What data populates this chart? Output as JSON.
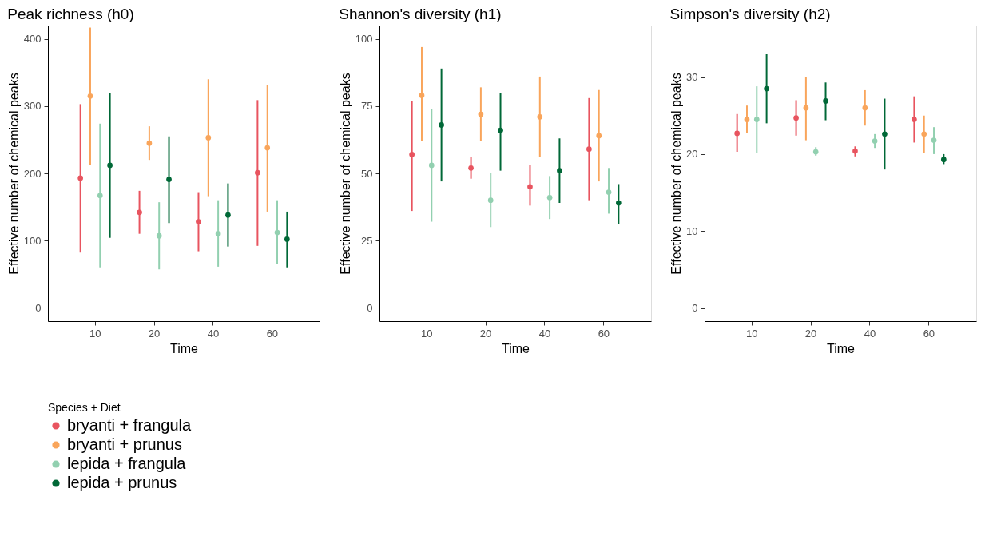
{
  "chart_data": [
    {
      "type": "scatter",
      "title": "Peak richness (h0)",
      "xlabel": "Time",
      "ylabel": "Effective number of chemical peaks",
      "categories": [
        "10",
        "20",
        "40",
        "60"
      ],
      "ylim": [
        -20,
        420
      ],
      "yticks": [
        0,
        100,
        200,
        300,
        400
      ],
      "grid": false,
      "marker": "circle",
      "legend": "bottom",
      "legend_title": "Species + Diet",
      "series": [
        {
          "name": "bryanti + frangula",
          "color": "#e8545f",
          "values": [
            193,
            142,
            128,
            201
          ],
          "errors": [
            [
              82,
              303
            ],
            [
              110,
              174
            ],
            [
              84,
              172
            ],
            [
              92,
              309
            ]
          ]
        },
        {
          "name": "bryanti + prunus",
          "color": "#f9a55b",
          "values": [
            315,
            245,
            253,
            238
          ],
          "errors": [
            [
              213,
              417
            ],
            [
              220,
              270
            ],
            [
              166,
              340
            ],
            [
              143,
              331
            ]
          ]
        },
        {
          "name": "lepida + frangula",
          "color": "#92d0b0",
          "values": [
            167,
            107,
            110,
            112
          ],
          "errors": [
            [
              60,
              274
            ],
            [
              57,
              157
            ],
            [
              61,
              160
            ],
            [
              65,
              160
            ]
          ]
        },
        {
          "name": "lepida + prunus",
          "color": "#006837",
          "values": [
            212,
            191,
            138,
            102
          ],
          "errors": [
            [
              104,
              319
            ],
            [
              126,
              255
            ],
            [
              91,
              185
            ],
            [
              60,
              143
            ]
          ]
        }
      ]
    },
    {
      "type": "scatter",
      "title": "Shannon's diversity (h1)",
      "xlabel": "Time",
      "ylabel": "Effective number of chemical peaks",
      "categories": [
        "10",
        "20",
        "40",
        "60"
      ],
      "ylim": [
        -5,
        105
      ],
      "yticks": [
        0,
        25,
        50,
        75,
        100
      ],
      "grid": false,
      "marker": "circle",
      "series": [
        {
          "color": "#e8545f",
          "values": [
            57,
            52,
            45,
            59
          ],
          "errors": [
            [
              36,
              77
            ],
            [
              48,
              56
            ],
            [
              38,
              53
            ],
            [
              40,
              78
            ]
          ]
        },
        {
          "color": "#f9a55b",
          "values": [
            79,
            72,
            71,
            64
          ],
          "errors": [
            [
              62,
              97
            ],
            [
              62,
              82
            ],
            [
              56,
              86
            ],
            [
              47,
              81
            ]
          ]
        },
        {
          "color": "#92d0b0",
          "values": [
            53,
            40,
            41,
            43
          ],
          "errors": [
            [
              32,
              74
            ],
            [
              30,
              50
            ],
            [
              33,
              49
            ],
            [
              35,
              52
            ]
          ]
        },
        {
          "color": "#006837",
          "values": [
            68,
            66,
            51,
            39
          ],
          "errors": [
            [
              47,
              89
            ],
            [
              51,
              80
            ],
            [
              39,
              63
            ],
            [
              31,
              46
            ]
          ]
        }
      ]
    },
    {
      "type": "scatter",
      "title": "Simpson's diversity (h2)",
      "xlabel": "Time",
      "ylabel": "Effective number of chemical peaks",
      "categories": [
        "10",
        "20",
        "40",
        "60"
      ],
      "ylim": [
        -1.7,
        36.7
      ],
      "yticks": [
        0,
        10,
        20,
        30
      ],
      "grid": false,
      "marker": "circle",
      "series": [
        {
          "color": "#e8545f",
          "values": [
            22.7,
            24.7,
            20.4,
            24.5
          ],
          "errors": [
            [
              20.3,
              25.2
            ],
            [
              22.4,
              27.0
            ],
            [
              19.7,
              21.0
            ],
            [
              21.5,
              27.5
            ]
          ]
        },
        {
          "color": "#f9a55b",
          "values": [
            24.5,
            26.0,
            26.0,
            22.6
          ],
          "errors": [
            [
              22.7,
              26.3
            ],
            [
              21.8,
              30.0
            ],
            [
              23.7,
              28.3
            ],
            [
              20.2,
              25.0
            ]
          ]
        },
        {
          "color": "#92d0b0",
          "values": [
            24.5,
            20.3,
            21.7,
            21.8
          ],
          "errors": [
            [
              20.2,
              28.8
            ],
            [
              19.8,
              20.9
            ],
            [
              20.8,
              22.6
            ],
            [
              20.0,
              23.5
            ]
          ]
        },
        {
          "color": "#006837",
          "values": [
            28.5,
            26.9,
            22.6,
            19.3
          ],
          "errors": [
            [
              24.0,
              33.0
            ],
            [
              24.4,
              29.3
            ],
            [
              18.0,
              27.2
            ],
            [
              18.7,
              20.0
            ]
          ]
        }
      ]
    }
  ]
}
